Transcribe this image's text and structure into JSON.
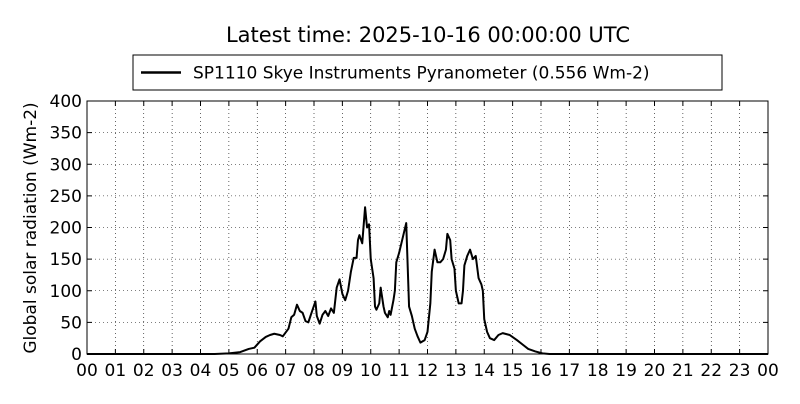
{
  "chart_data": {
    "type": "line",
    "title": "Latest time: 2025-10-16 00:00:00 UTC",
    "y_label": "Global solar radiation (Wm-2)",
    "legend_position": "top",
    "grid": true,
    "xlim": [
      0,
      24
    ],
    "xticks": [
      {
        "value": 0,
        "label": "00"
      },
      {
        "value": 1,
        "label": "01"
      },
      {
        "value": 2,
        "label": "02"
      },
      {
        "value": 3,
        "label": "03"
      },
      {
        "value": 4,
        "label": "04"
      },
      {
        "value": 5,
        "label": "05"
      },
      {
        "value": 6,
        "label": "06"
      },
      {
        "value": 7,
        "label": "07"
      },
      {
        "value": 8,
        "label": "08"
      },
      {
        "value": 9,
        "label": "09"
      },
      {
        "value": 10,
        "label": "10"
      },
      {
        "value": 11,
        "label": "11"
      },
      {
        "value": 12,
        "label": "12"
      },
      {
        "value": 13,
        "label": "13"
      },
      {
        "value": 14,
        "label": "14"
      },
      {
        "value": 15,
        "label": "15"
      },
      {
        "value": 16,
        "label": "16"
      },
      {
        "value": 17,
        "label": "17"
      },
      {
        "value": 18,
        "label": "18"
      },
      {
        "value": 19,
        "label": "19"
      },
      {
        "value": 20,
        "label": "20"
      },
      {
        "value": 21,
        "label": "21"
      },
      {
        "value": 22,
        "label": "22"
      },
      {
        "value": 23,
        "label": "23"
      },
      {
        "value": 24,
        "label": "00"
      }
    ],
    "ylim": [
      0,
      400
    ],
    "yticks": [
      0,
      50,
      100,
      150,
      200,
      250,
      300,
      350,
      400
    ],
    "x": [
      0,
      4.5,
      5.0,
      5.4,
      5.7,
      5.9,
      6.1,
      6.3,
      6.45,
      6.6,
      6.8,
      6.9,
      7.1,
      7.2,
      7.3,
      7.4,
      7.5,
      7.6,
      7.7,
      7.8,
      7.95,
      8.05,
      8.1,
      8.2,
      8.3,
      8.4,
      8.5,
      8.6,
      8.7,
      8.8,
      8.9,
      9.0,
      9.1,
      9.2,
      9.3,
      9.4,
      9.5,
      9.55,
      9.6,
      9.7,
      9.8,
      9.87,
      9.94,
      10.0,
      10.1,
      10.15,
      10.2,
      10.3,
      10.35,
      10.45,
      10.5,
      10.6,
      10.65,
      10.7,
      10.8,
      10.85,
      10.9,
      11.0,
      11.25,
      11.35,
      11.45,
      11.55,
      11.65,
      11.75,
      11.9,
      12.0,
      12.1,
      12.15,
      12.25,
      12.35,
      12.45,
      12.55,
      12.65,
      12.7,
      12.8,
      12.85,
      12.95,
      13.0,
      13.1,
      13.2,
      13.25,
      13.3,
      13.4,
      13.5,
      13.6,
      13.7,
      13.8,
      13.9,
      13.95,
      14.0,
      14.1,
      14.2,
      14.35,
      14.5,
      14.65,
      14.9,
      15.15,
      15.35,
      15.55,
      15.8,
      16.05,
      16.3,
      24
    ],
    "series": [
      {
        "name": "SP1110 Skye Instruments Pyranometer (0.556 Wm-2)",
        "color": "#000000",
        "values": [
          0,
          0,
          1,
          3,
          8,
          10,
          20,
          27,
          30,
          32,
          30,
          28,
          40,
          58,
          62,
          78,
          68,
          65,
          52,
          50,
          70,
          83,
          60,
          48,
          62,
          68,
          60,
          72,
          65,
          105,
          118,
          95,
          85,
          100,
          130,
          152,
          152,
          180,
          188,
          175,
          232,
          200,
          205,
          150,
          120,
          75,
          70,
          80,
          105,
          75,
          65,
          58,
          68,
          62,
          85,
          100,
          145,
          160,
          207,
          75,
          60,
          40,
          28,
          18,
          22,
          35,
          80,
          130,
          165,
          145,
          145,
          150,
          165,
          190,
          180,
          150,
          135,
          100,
          80,
          80,
          100,
          140,
          155,
          165,
          150,
          155,
          120,
          110,
          100,
          55,
          35,
          25,
          22,
          30,
          33,
          30,
          22,
          15,
          8,
          4,
          1,
          0,
          0
        ]
      }
    ]
  }
}
